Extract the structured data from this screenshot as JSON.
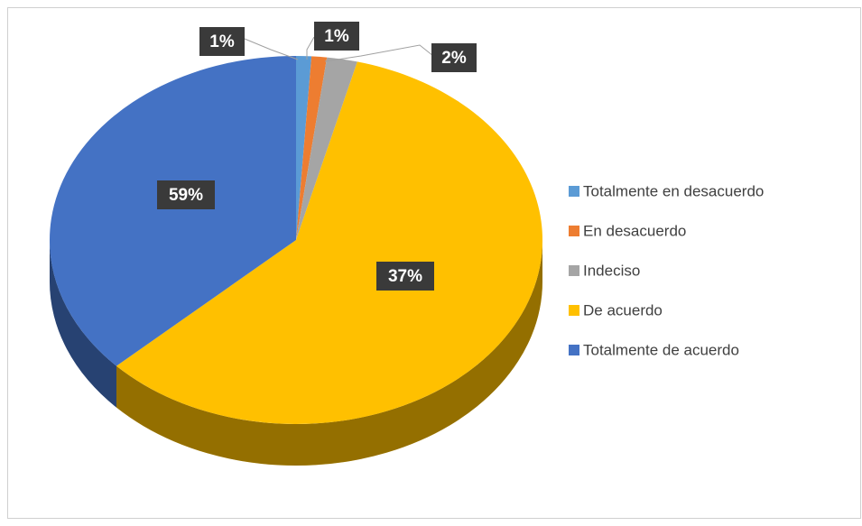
{
  "chart_data": {
    "type": "pie",
    "categories": [
      "Totalmente en desacuerdo",
      "En desacuerdo",
      "Indeciso",
      "De acuerdo",
      "Totalmente de acuerdo"
    ],
    "values": [
      1,
      1,
      2,
      59,
      37
    ],
    "value_labels": [
      "1%",
      "1%",
      "2%",
      "59%",
      "37%"
    ],
    "colors": [
      "#5b9bd5",
      "#ed7d31",
      "#a5a5a5",
      "#ffc000",
      "#4472c4"
    ],
    "legend": "right"
  }
}
